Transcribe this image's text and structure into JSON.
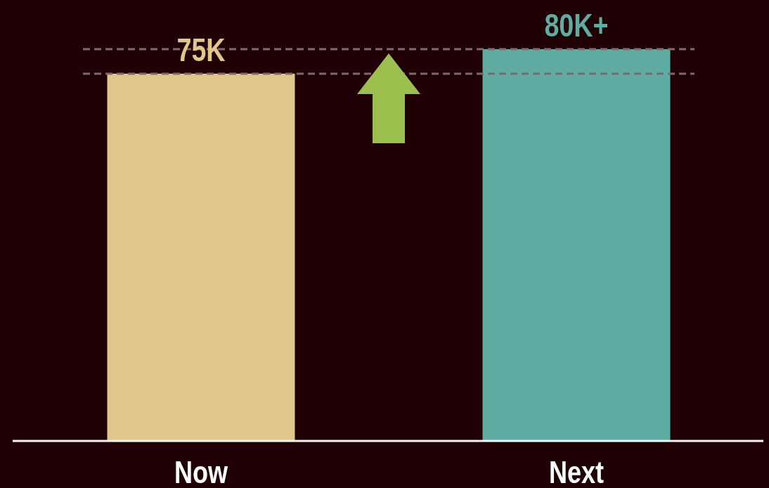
{
  "chart_data": {
    "type": "bar",
    "categories": [
      "Now",
      "Next"
    ],
    "values": [
      75000,
      80000
    ],
    "colors": [
      "#e2c68b",
      "#5fada2"
    ],
    "value_labels": [
      "75K",
      "80K+"
    ],
    "tick_labels": "x",
    "ref_lines": [
      {
        "axis": "y",
        "value": 75000,
        "color": "#7d6a6c",
        "line_style": "dashed"
      },
      {
        "axis": "y",
        "value": 80000,
        "color": "#7d6a6c",
        "line_style": "dashed"
      }
    ]
  }
}
